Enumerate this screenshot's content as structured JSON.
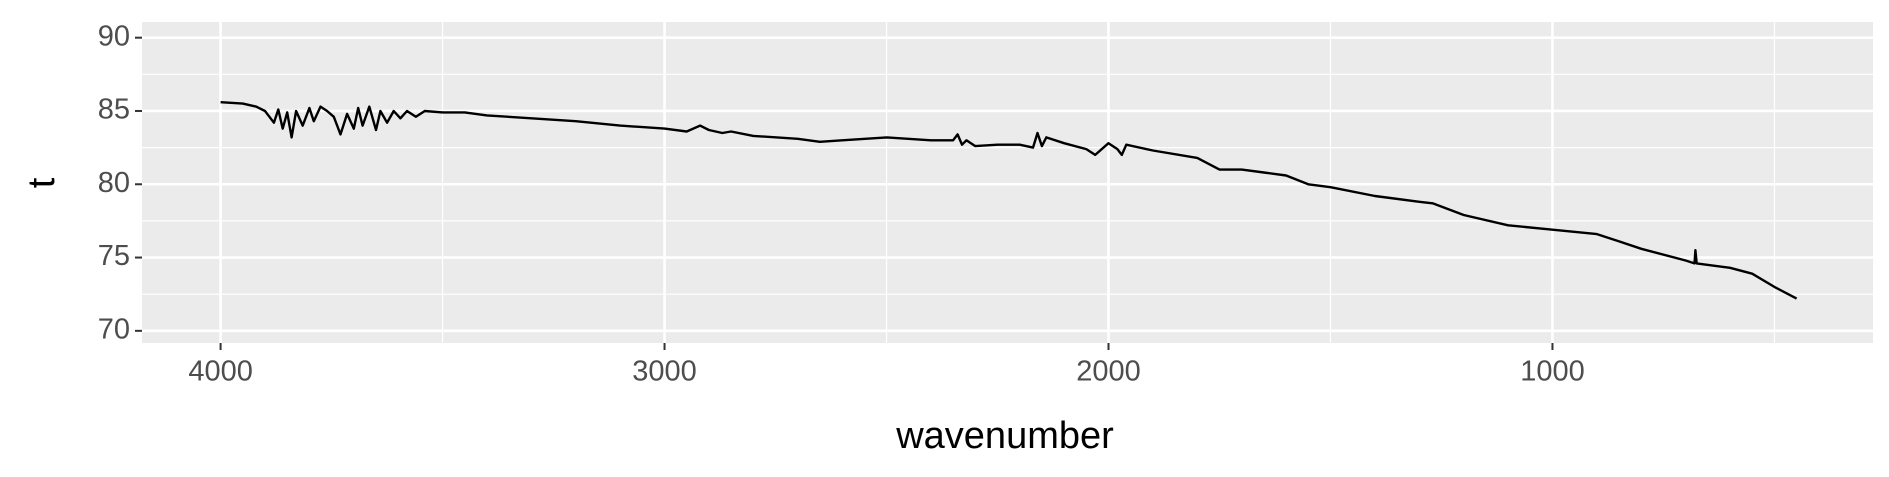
{
  "chart_data": {
    "type": "line",
    "x_label": "wavenumber",
    "y_label": "t",
    "x": [
      4000,
      3950,
      3920,
      3900,
      3880,
      3870,
      3860,
      3850,
      3840,
      3830,
      3815,
      3800,
      3790,
      3775,
      3760,
      3745,
      3730,
      3715,
      3700,
      3690,
      3680,
      3665,
      3650,
      3640,
      3625,
      3610,
      3595,
      3580,
      3560,
      3540,
      3500,
      3450,
      3400,
      3300,
      3200,
      3100,
      3000,
      2950,
      2920,
      2900,
      2870,
      2850,
      2800,
      2700,
      2650,
      2600,
      2500,
      2400,
      2350,
      2340,
      2330,
      2320,
      2300,
      2250,
      2200,
      2170,
      2160,
      2150,
      2140,
      2100,
      2050,
      2030,
      2000,
      1980,
      1970,
      1960,
      1900,
      1800,
      1750,
      1700,
      1650,
      1600,
      1550,
      1500,
      1400,
      1300,
      1270,
      1200,
      1100,
      1000,
      900,
      850,
      800,
      700,
      680,
      678,
      675,
      600,
      550,
      500,
      450
    ],
    "series": [
      {
        "color": "#000000",
        "values": [
          85.6,
          85.5,
          85.3,
          85.0,
          84.2,
          85.1,
          83.8,
          84.9,
          83.2,
          85.0,
          84.0,
          85.2,
          84.3,
          85.3,
          85.0,
          84.6,
          83.4,
          84.8,
          83.8,
          85.2,
          84.0,
          85.3,
          83.7,
          85.0,
          84.2,
          85.0,
          84.5,
          85.0,
          84.6,
          85.0,
          84.9,
          84.9,
          84.7,
          84.5,
          84.3,
          84.0,
          83.8,
          83.6,
          84.0,
          83.7,
          83.5,
          83.6,
          83.3,
          83.1,
          82.9,
          83.0,
          83.2,
          83.0,
          83.0,
          83.4,
          82.7,
          83.0,
          82.6,
          82.7,
          82.7,
          82.5,
          83.5,
          82.6,
          83.2,
          82.8,
          82.4,
          82.0,
          82.8,
          82.4,
          82.0,
          82.7,
          82.3,
          81.8,
          81.0,
          81.0,
          80.8,
          80.6,
          80.0,
          79.8,
          79.2,
          78.8,
          78.7,
          77.9,
          77.2,
          76.9,
          76.6,
          76.1,
          75.6,
          74.8,
          74.6,
          75.5,
          74.6,
          74.3,
          73.9,
          73.0,
          72.2
        ]
      }
    ],
    "xlim": [
      4177,
      278
    ],
    "xticks": [
      4000,
      3000,
      2000,
      1000
    ],
    "x_minor_ticks": [
      3500,
      2500,
      1500,
      500
    ],
    "ylim": [
      69.17,
      91.07
    ],
    "yticks": [
      70,
      75,
      80,
      85,
      90
    ],
    "y_minor_ticks": [
      72.5,
      77.5,
      82.5,
      87.5
    ],
    "grid": true
  }
}
